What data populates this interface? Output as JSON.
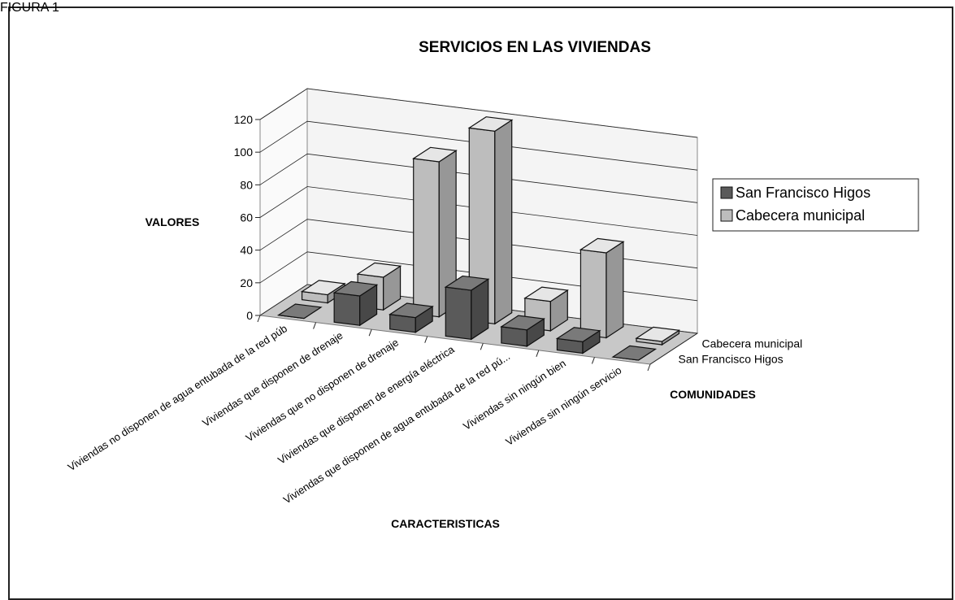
{
  "figure_label": "FIGURA 1",
  "chart_data": {
    "type": "bar3d",
    "title": "SERVICIOS EN LAS VIVIENDAS",
    "y_label": "VALORES",
    "x_label": "CARACTERISTICAS",
    "z_label": "COMUNIDADES",
    "categories": [
      "Viviendas no disponen de agua entubada de la red púb",
      "Viviendas que disponen de drenaje",
      "Viviendas que no disponen de drenaje",
      "Viviendas que disponen de energía eléctrica",
      "Viviendas que disponen de agua entubada de la red pú...",
      "Viviendas sin ningún bien",
      "Viviendas sin ningún servicio"
    ],
    "series": [
      {
        "name": "San Francisco Higos",
        "color": "#5a5a5a",
        "values": [
          0,
          18,
          9,
          30,
          10,
          7,
          0
        ]
      },
      {
        "name": "Cabecera municipal",
        "color": "#bdbdbd",
        "values": [
          5,
          20,
          95,
          118,
          18,
          52,
          2
        ]
      }
    ],
    "ylim": [
      0,
      120
    ],
    "yticks": [
      0,
      20,
      40,
      60,
      80,
      100,
      120
    ],
    "grid": true,
    "legend": "right"
  }
}
